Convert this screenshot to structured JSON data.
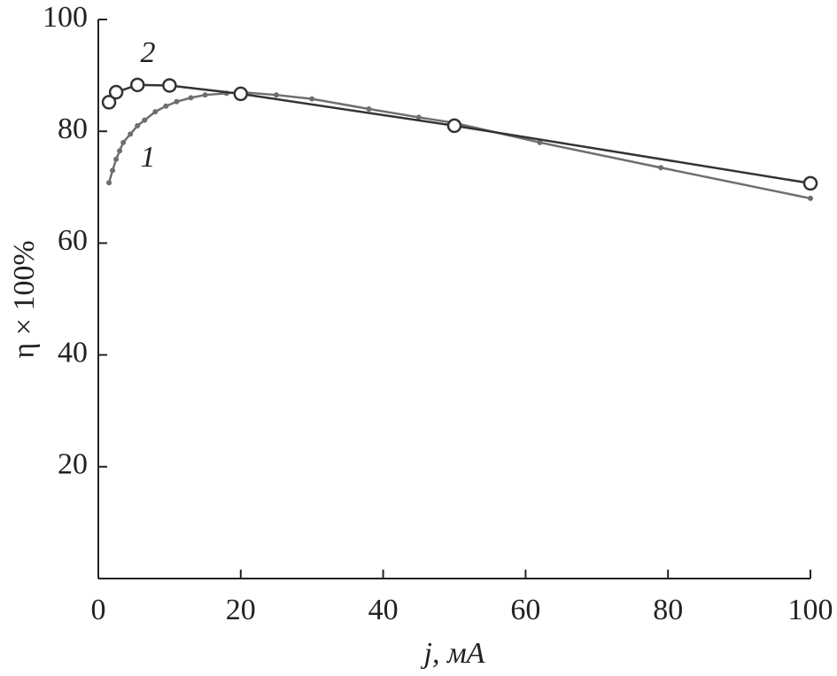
{
  "chart_data": {
    "type": "line",
    "x_label": "j, мА",
    "y_label": "η × 100%",
    "xlim": [
      0,
      100
    ],
    "xticks": [
      0,
      20,
      40,
      60,
      80,
      100
    ],
    "ylim": [
      0,
      100
    ],
    "yticks": [
      20,
      40,
      60,
      80,
      100
    ],
    "series": [
      {
        "name": "1",
        "color": "#6e6e6e",
        "marker": "dot",
        "x": [
          1.5,
          2,
          2.5,
          3,
          3.5,
          4.5,
          5.5,
          6.5,
          8,
          9.5,
          11,
          13,
          15,
          18,
          20,
          25,
          30,
          38,
          45,
          50,
          62,
          79,
          100
        ],
        "values": [
          70.8,
          73,
          75,
          76.5,
          78,
          79.5,
          81,
          82,
          83.5,
          84.5,
          85.3,
          86,
          86.5,
          86.8,
          87,
          86.5,
          85.8,
          84,
          82.5,
          81.5,
          78,
          73.5,
          68
        ]
      },
      {
        "name": "2",
        "color": "#333333",
        "marker": "circle",
        "x": [
          1.5,
          2.5,
          5.5,
          10,
          20,
          50,
          100
        ],
        "values": [
          85.2,
          87,
          88.3,
          88.2,
          86.7,
          81,
          70.7
        ]
      }
    ]
  }
}
